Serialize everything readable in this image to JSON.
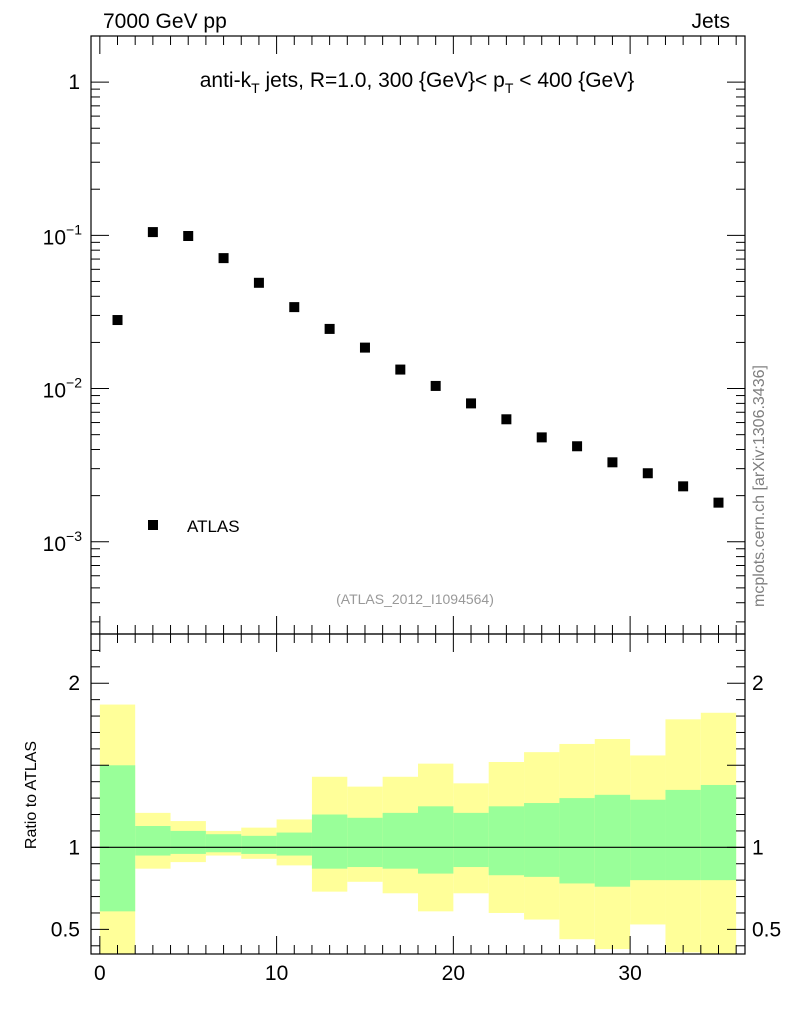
{
  "header": {
    "left_label": "7000 GeV pp",
    "right_label": "Jets",
    "side_label": "mcplots.cern.ch [arXiv:1306.3436]"
  },
  "chart_data": [
    {
      "type": "scatter",
      "title_parts": {
        "t1": "anti-k",
        "t1_sub": "T",
        "t2": " jets, R=1.0, 300 {GeV}< p",
        "t2_sub": "T",
        "t3": " < 400 {GeV}"
      },
      "yscale": "log",
      "ylim": [
        0.00025,
        2.0
      ],
      "xlim": [
        -0.5,
        36.5
      ],
      "y_ticks": [
        {
          "value": 1,
          "label": "1"
        },
        {
          "value": 0.1,
          "base": "10",
          "exp": "−1"
        },
        {
          "value": 0.01,
          "base": "10",
          "exp": "−2"
        },
        {
          "value": 0.001,
          "base": "10",
          "exp": "−3"
        }
      ],
      "series": [
        {
          "name": "ATLAS",
          "marker": "square",
          "color": "#000000",
          "x": [
            1,
            3,
            5,
            7,
            9,
            11,
            13,
            15,
            17,
            19,
            21,
            23,
            25,
            27,
            29,
            31,
            33,
            35
          ],
          "y": [
            0.028,
            0.105,
            0.099,
            0.071,
            0.049,
            0.034,
            0.0245,
            0.0185,
            0.0133,
            0.0104,
            0.008,
            0.0063,
            0.0048,
            0.0042,
            0.0033,
            0.0028,
            0.0023,
            0.0018
          ]
        }
      ],
      "legend": {
        "position": "bottom-left",
        "entries": [
          "ATLAS"
        ]
      },
      "annotation": "(ATLAS_2012_I1094564)"
    },
    {
      "type": "area",
      "ylabel": "Ratio to ATLAS",
      "xlim": [
        -0.5,
        36.5
      ],
      "ylim": [
        0.35,
        2.3
      ],
      "y_ticks": [
        {
          "value": 2,
          "label": "2"
        },
        {
          "value": 1,
          "label": "1"
        },
        {
          "value": 0.5,
          "label": "0.5"
        }
      ],
      "x_ticks": [
        {
          "value": 0,
          "label": "0"
        },
        {
          "value": 10,
          "label": "10"
        },
        {
          "value": 20,
          "label": "20"
        },
        {
          "value": 30,
          "label": "30"
        }
      ],
      "reference_line": 1,
      "bin_edges": [
        0,
        2,
        4,
        6,
        8,
        10,
        12,
        14,
        16,
        18,
        20,
        22,
        24,
        26,
        28,
        30,
        32,
        34,
        36
      ],
      "band_inner": {
        "color": "#99ff99",
        "lower": [
          0.61,
          0.95,
          0.96,
          0.97,
          0.96,
          0.95,
          0.87,
          0.88,
          0.87,
          0.84,
          0.88,
          0.83,
          0.82,
          0.78,
          0.76,
          0.8,
          0.8,
          0.8
        ],
        "upper": [
          1.5,
          1.13,
          1.1,
          1.08,
          1.07,
          1.09,
          1.2,
          1.18,
          1.21,
          1.25,
          1.21,
          1.25,
          1.27,
          1.3,
          1.32,
          1.29,
          1.35,
          1.38
        ]
      },
      "band_outer": {
        "color": "#ffff99",
        "lower": [
          0.35,
          0.87,
          0.91,
          0.95,
          0.93,
          0.89,
          0.73,
          0.79,
          0.72,
          0.61,
          0.72,
          0.6,
          0.56,
          0.44,
          0.38,
          0.53,
          0.36,
          0.35
        ],
        "upper": [
          1.87,
          1.21,
          1.16,
          1.1,
          1.12,
          1.17,
          1.43,
          1.37,
          1.43,
          1.51,
          1.39,
          1.52,
          1.58,
          1.63,
          1.66,
          1.56,
          1.78,
          1.82
        ]
      }
    }
  ]
}
